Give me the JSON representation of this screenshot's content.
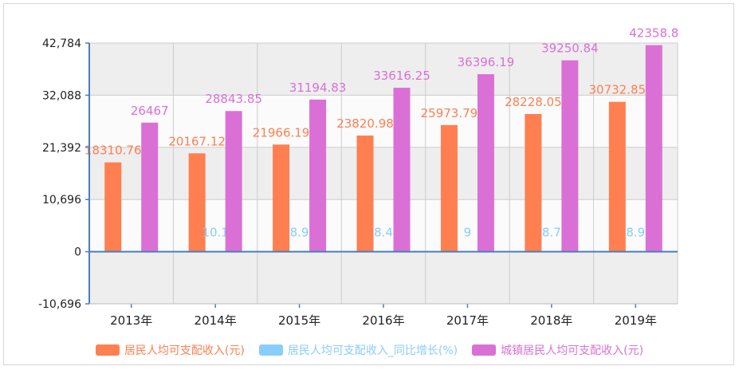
{
  "chart_data": {
    "type": "bar",
    "categories": [
      "2013年",
      "2014年",
      "2015年",
      "2016年",
      "2017年",
      "2018年",
      "2019年"
    ],
    "series": [
      {
        "name": "居民人均可支配收入(元)",
        "values": [
          18310.76,
          20167.12,
          21966.19,
          23820.98,
          25973.79,
          28228.05,
          30732.85
        ],
        "labels": [
          "18310.76",
          "20167.12",
          "21966.19",
          "23820.98",
          "25973.79",
          "28228.05",
          "30732.85"
        ],
        "color": "#ff7f50"
      },
      {
        "name": "居民人均可支配收入_同比增长(%)",
        "values": [
          null,
          10.1,
          8.9,
          8.4,
          9,
          8.7,
          8.9
        ],
        "labels": [
          "",
          "10.1",
          "8.9",
          "8.4",
          "9",
          "8.7",
          "8.9"
        ],
        "color": "#87cefa"
      },
      {
        "name": "城镇居民人均可支配收入(元)",
        "values": [
          26467,
          28843.85,
          31194.83,
          33616.25,
          36396.19,
          39250.84,
          42358.8
        ],
        "labels": [
          "26467",
          "28843.85",
          "31194.83",
          "33616.25",
          "36396.19",
          "39250.84",
          "42358.8"
        ],
        "color": "#da70d6"
      }
    ],
    "yticks": [
      -10696,
      0,
      10696,
      21392,
      32088,
      42784
    ],
    "ytick_labels": [
      "-10,696",
      "0",
      "10,696",
      "21,392",
      "32,088",
      "42,784"
    ],
    "ylim": [
      -10696,
      42784
    ],
    "legend_position": "bottom"
  }
}
